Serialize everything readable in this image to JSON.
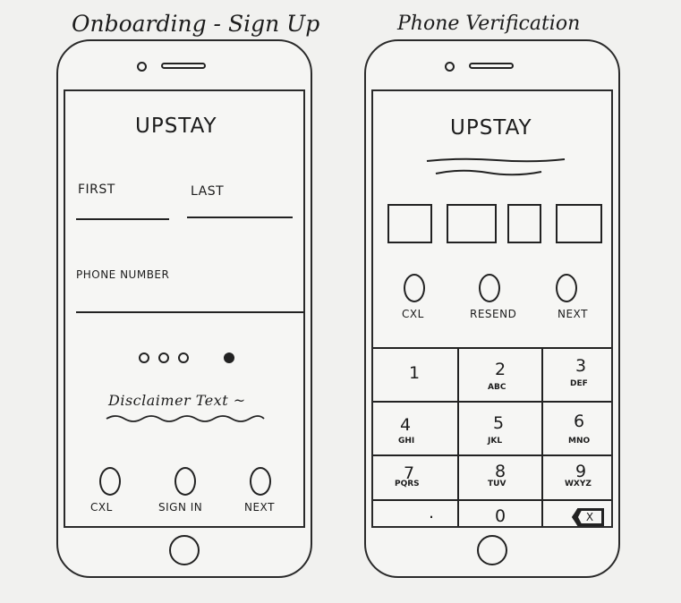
{
  "left": {
    "title": "Onboarding - Sign Up",
    "logo": "UPSTAY",
    "first_label": "FIRST",
    "last_label": "LAST",
    "phone_label": "PHONE NUMBER",
    "disclaimer": "Disclaimer Text ~",
    "buttons": [
      "CXL",
      "SIGN IN",
      "NEXT"
    ],
    "page_dots": {
      "total": 4,
      "active": 4
    }
  },
  "right": {
    "title": "Phone Verification",
    "logo": "UPSTAY",
    "code_boxes": 4,
    "buttons": [
      "CXL",
      "RESEND",
      "NEXT"
    ],
    "keypad": [
      {
        "num": "1",
        "sub": ""
      },
      {
        "num": "2",
        "sub": "ABC"
      },
      {
        "num": "3",
        "sub": "DEF"
      },
      {
        "num": "4",
        "sub": "GHI"
      },
      {
        "num": "5",
        "sub": "JKL"
      },
      {
        "num": "6",
        "sub": "MNO"
      },
      {
        "num": "7",
        "sub": "PQRS"
      },
      {
        "num": "8",
        "sub": "TUV"
      },
      {
        "num": "9",
        "sub": "WXYZ"
      },
      {
        "num": ".",
        "sub": ""
      },
      {
        "num": "0",
        "sub": ""
      },
      {
        "num": "X",
        "sub": ""
      }
    ]
  }
}
